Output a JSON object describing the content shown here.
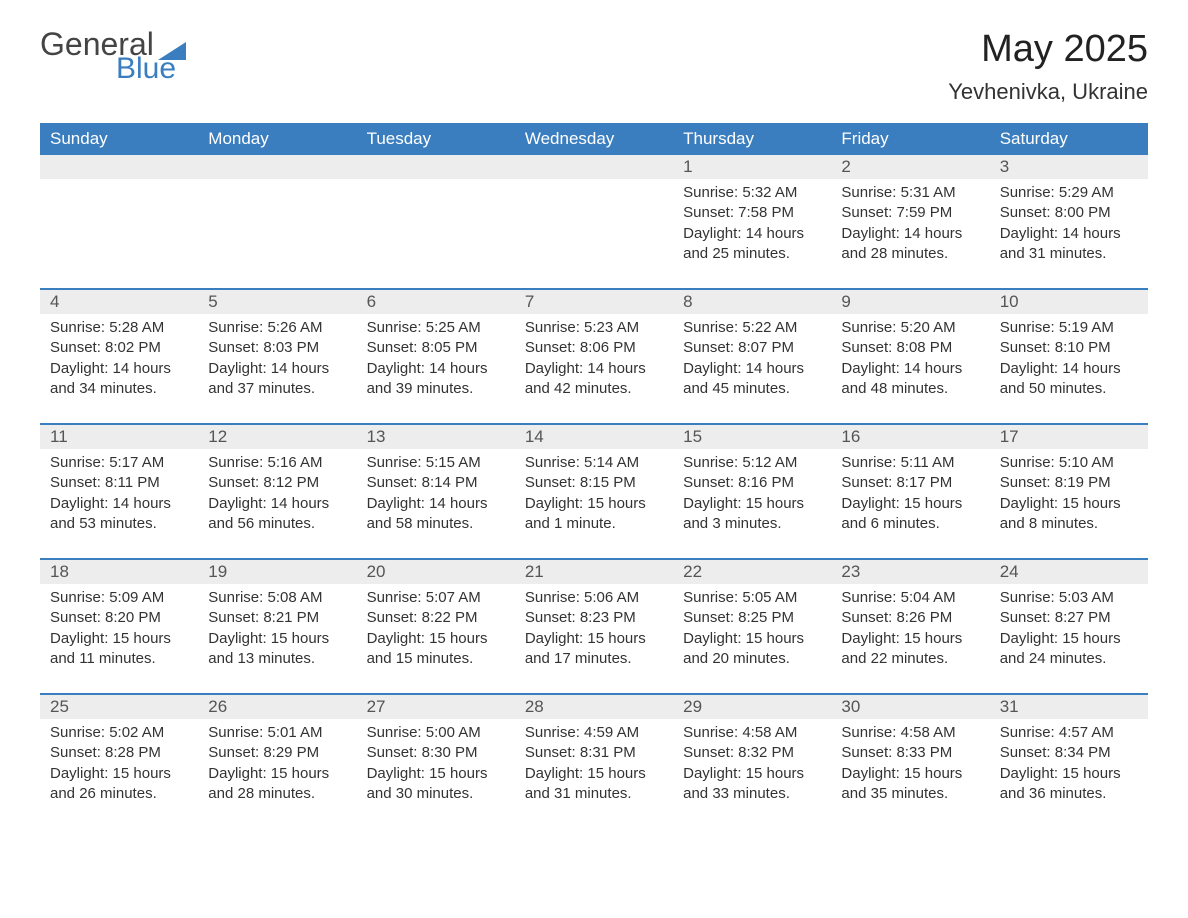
{
  "brand": {
    "general": "General",
    "blue": "Blue",
    "flag_color": "#3a7ebf"
  },
  "title": {
    "month": "May 2025",
    "location": "Yevhenivka, Ukraine"
  },
  "colors": {
    "header_bg": "#3a7ebf",
    "header_text": "#ffffff",
    "daynum_bg": "#ededed",
    "daynum_text": "#555555",
    "body_text": "#333333",
    "rule": "#3a7ebf",
    "page_bg": "#ffffff"
  },
  "fonts": {
    "base_family": "Arial",
    "title_size_pt": 28,
    "header_size_pt": 13,
    "body_size_pt": 11
  },
  "day_names": [
    "Sunday",
    "Monday",
    "Tuesday",
    "Wednesday",
    "Thursday",
    "Friday",
    "Saturday"
  ],
  "weeks": [
    [
      null,
      null,
      null,
      null,
      {
        "n": "1",
        "sunrise": "Sunrise: 5:32 AM",
        "sunset": "Sunset: 7:58 PM",
        "dl1": "Daylight: 14 hours",
        "dl2": "and 25 minutes."
      },
      {
        "n": "2",
        "sunrise": "Sunrise: 5:31 AM",
        "sunset": "Sunset: 7:59 PM",
        "dl1": "Daylight: 14 hours",
        "dl2": "and 28 minutes."
      },
      {
        "n": "3",
        "sunrise": "Sunrise: 5:29 AM",
        "sunset": "Sunset: 8:00 PM",
        "dl1": "Daylight: 14 hours",
        "dl2": "and 31 minutes."
      }
    ],
    [
      {
        "n": "4",
        "sunrise": "Sunrise: 5:28 AM",
        "sunset": "Sunset: 8:02 PM",
        "dl1": "Daylight: 14 hours",
        "dl2": "and 34 minutes."
      },
      {
        "n": "5",
        "sunrise": "Sunrise: 5:26 AM",
        "sunset": "Sunset: 8:03 PM",
        "dl1": "Daylight: 14 hours",
        "dl2": "and 37 minutes."
      },
      {
        "n": "6",
        "sunrise": "Sunrise: 5:25 AM",
        "sunset": "Sunset: 8:05 PM",
        "dl1": "Daylight: 14 hours",
        "dl2": "and 39 minutes."
      },
      {
        "n": "7",
        "sunrise": "Sunrise: 5:23 AM",
        "sunset": "Sunset: 8:06 PM",
        "dl1": "Daylight: 14 hours",
        "dl2": "and 42 minutes."
      },
      {
        "n": "8",
        "sunrise": "Sunrise: 5:22 AM",
        "sunset": "Sunset: 8:07 PM",
        "dl1": "Daylight: 14 hours",
        "dl2": "and 45 minutes."
      },
      {
        "n": "9",
        "sunrise": "Sunrise: 5:20 AM",
        "sunset": "Sunset: 8:08 PM",
        "dl1": "Daylight: 14 hours",
        "dl2": "and 48 minutes."
      },
      {
        "n": "10",
        "sunrise": "Sunrise: 5:19 AM",
        "sunset": "Sunset: 8:10 PM",
        "dl1": "Daylight: 14 hours",
        "dl2": "and 50 minutes."
      }
    ],
    [
      {
        "n": "11",
        "sunrise": "Sunrise: 5:17 AM",
        "sunset": "Sunset: 8:11 PM",
        "dl1": "Daylight: 14 hours",
        "dl2": "and 53 minutes."
      },
      {
        "n": "12",
        "sunrise": "Sunrise: 5:16 AM",
        "sunset": "Sunset: 8:12 PM",
        "dl1": "Daylight: 14 hours",
        "dl2": "and 56 minutes."
      },
      {
        "n": "13",
        "sunrise": "Sunrise: 5:15 AM",
        "sunset": "Sunset: 8:14 PM",
        "dl1": "Daylight: 14 hours",
        "dl2": "and 58 minutes."
      },
      {
        "n": "14",
        "sunrise": "Sunrise: 5:14 AM",
        "sunset": "Sunset: 8:15 PM",
        "dl1": "Daylight: 15 hours",
        "dl2": "and 1 minute."
      },
      {
        "n": "15",
        "sunrise": "Sunrise: 5:12 AM",
        "sunset": "Sunset: 8:16 PM",
        "dl1": "Daylight: 15 hours",
        "dl2": "and 3 minutes."
      },
      {
        "n": "16",
        "sunrise": "Sunrise: 5:11 AM",
        "sunset": "Sunset: 8:17 PM",
        "dl1": "Daylight: 15 hours",
        "dl2": "and 6 minutes."
      },
      {
        "n": "17",
        "sunrise": "Sunrise: 5:10 AM",
        "sunset": "Sunset: 8:19 PM",
        "dl1": "Daylight: 15 hours",
        "dl2": "and 8 minutes."
      }
    ],
    [
      {
        "n": "18",
        "sunrise": "Sunrise: 5:09 AM",
        "sunset": "Sunset: 8:20 PM",
        "dl1": "Daylight: 15 hours",
        "dl2": "and 11 minutes."
      },
      {
        "n": "19",
        "sunrise": "Sunrise: 5:08 AM",
        "sunset": "Sunset: 8:21 PM",
        "dl1": "Daylight: 15 hours",
        "dl2": "and 13 minutes."
      },
      {
        "n": "20",
        "sunrise": "Sunrise: 5:07 AM",
        "sunset": "Sunset: 8:22 PM",
        "dl1": "Daylight: 15 hours",
        "dl2": "and 15 minutes."
      },
      {
        "n": "21",
        "sunrise": "Sunrise: 5:06 AM",
        "sunset": "Sunset: 8:23 PM",
        "dl1": "Daylight: 15 hours",
        "dl2": "and 17 minutes."
      },
      {
        "n": "22",
        "sunrise": "Sunrise: 5:05 AM",
        "sunset": "Sunset: 8:25 PM",
        "dl1": "Daylight: 15 hours",
        "dl2": "and 20 minutes."
      },
      {
        "n": "23",
        "sunrise": "Sunrise: 5:04 AM",
        "sunset": "Sunset: 8:26 PM",
        "dl1": "Daylight: 15 hours",
        "dl2": "and 22 minutes."
      },
      {
        "n": "24",
        "sunrise": "Sunrise: 5:03 AM",
        "sunset": "Sunset: 8:27 PM",
        "dl1": "Daylight: 15 hours",
        "dl2": "and 24 minutes."
      }
    ],
    [
      {
        "n": "25",
        "sunrise": "Sunrise: 5:02 AM",
        "sunset": "Sunset: 8:28 PM",
        "dl1": "Daylight: 15 hours",
        "dl2": "and 26 minutes."
      },
      {
        "n": "26",
        "sunrise": "Sunrise: 5:01 AM",
        "sunset": "Sunset: 8:29 PM",
        "dl1": "Daylight: 15 hours",
        "dl2": "and 28 minutes."
      },
      {
        "n": "27",
        "sunrise": "Sunrise: 5:00 AM",
        "sunset": "Sunset: 8:30 PM",
        "dl1": "Daylight: 15 hours",
        "dl2": "and 30 minutes."
      },
      {
        "n": "28",
        "sunrise": "Sunrise: 4:59 AM",
        "sunset": "Sunset: 8:31 PM",
        "dl1": "Daylight: 15 hours",
        "dl2": "and 31 minutes."
      },
      {
        "n": "29",
        "sunrise": "Sunrise: 4:58 AM",
        "sunset": "Sunset: 8:32 PM",
        "dl1": "Daylight: 15 hours",
        "dl2": "and 33 minutes."
      },
      {
        "n": "30",
        "sunrise": "Sunrise: 4:58 AM",
        "sunset": "Sunset: 8:33 PM",
        "dl1": "Daylight: 15 hours",
        "dl2": "and 35 minutes."
      },
      {
        "n": "31",
        "sunrise": "Sunrise: 4:57 AM",
        "sunset": "Sunset: 8:34 PM",
        "dl1": "Daylight: 15 hours",
        "dl2": "and 36 minutes."
      }
    ]
  ]
}
